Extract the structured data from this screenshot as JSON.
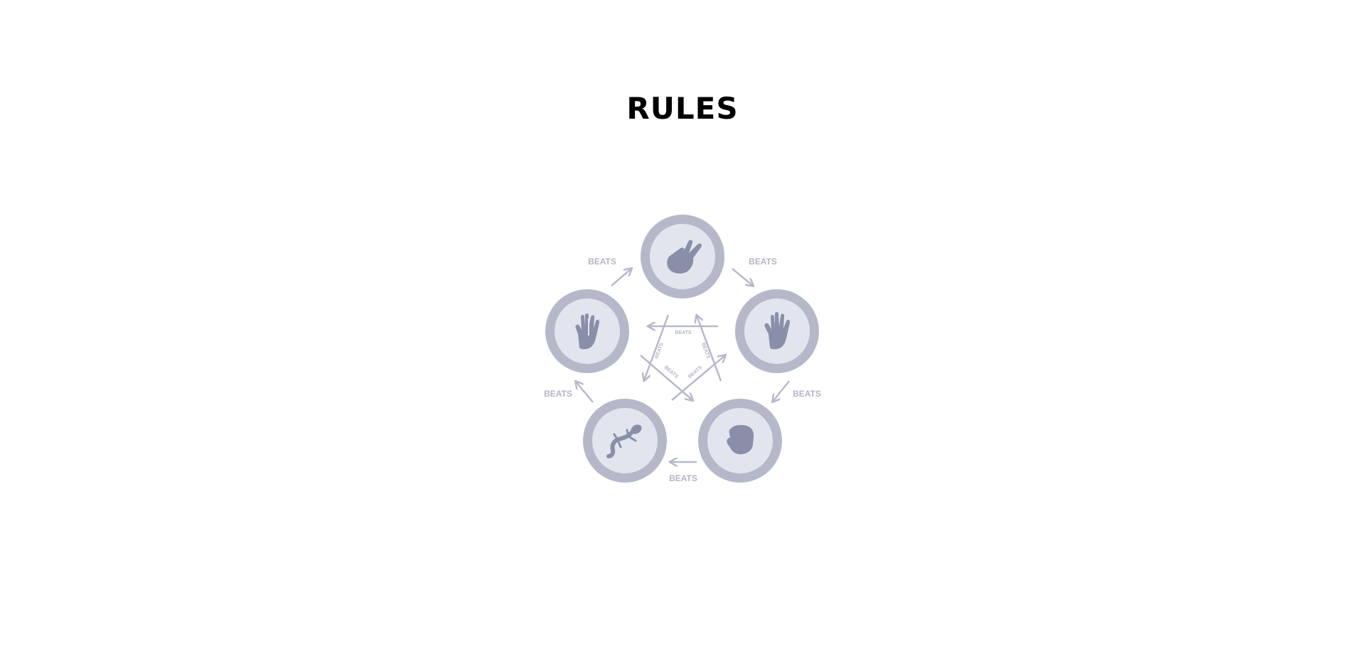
{
  "page": {
    "title": "RULES"
  },
  "diagram": {
    "beats_label": "BEATS",
    "colors": {
      "ring": "#b5b8c9",
      "inner": "#e3e5ee",
      "icon": "#8a8fa9",
      "arrow": "#b7b9cb",
      "label": "#b3b5c7"
    },
    "nodes": [
      {
        "id": "scissors",
        "icon": "scissors-hand-icon"
      },
      {
        "id": "paper",
        "icon": "paper-hand-icon"
      },
      {
        "id": "rock",
        "icon": "rock-fist-icon"
      },
      {
        "id": "lizard",
        "icon": "lizard-icon"
      },
      {
        "id": "spock",
        "icon": "spock-hand-icon"
      }
    ]
  }
}
